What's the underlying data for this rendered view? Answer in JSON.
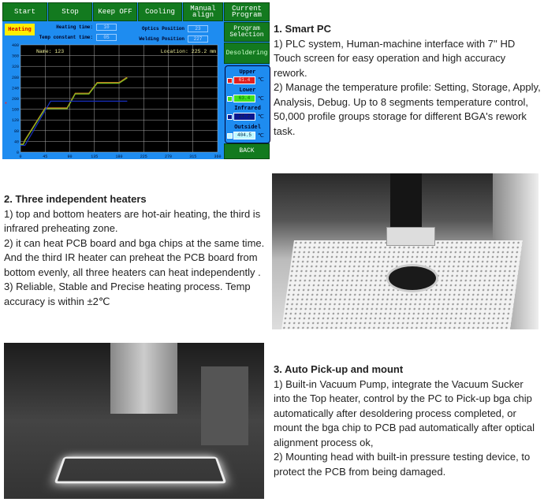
{
  "hmi": {
    "top_buttons": [
      "Start",
      "Stop",
      "Keep OFF",
      "Cooling",
      "Manual align",
      "Current Program"
    ],
    "side_buttons": [
      "Program Selection",
      "Desoldering",
      "BACK"
    ],
    "heating_badge": "Heating",
    "heating_time_label": "Heating time:",
    "heating_time_value": "10",
    "temp_constant_label": "Temp constant time:",
    "temp_constant_value": "0S",
    "optics_label": "Optics Position",
    "optics_value": "23",
    "welding_label": "Welding Position",
    "welding_value": "227",
    "name_label": "Name: 123",
    "location_label": "Location: 225.2 mm",
    "temps": [
      {
        "label": "Upper",
        "value": "61.4",
        "color": "#e02020"
      },
      {
        "label": "Lower",
        "value": "63.4",
        "color": "#40e020"
      },
      {
        "label": "Infrared",
        "value": "24.2",
        "color": "#0a1890"
      },
      {
        "label": "Outsidel",
        "value": "404.5",
        "color": "#bff8ff"
      }
    ],
    "unit": "℃",
    "chart_data": {
      "type": "line",
      "x_ticks": [
        "0",
        "45",
        "90",
        "135",
        "180",
        "225",
        "270",
        "315",
        "360"
      ],
      "y_ticks": [
        "0",
        "40",
        "80",
        "120",
        "160",
        "200",
        "240",
        "280",
        "320",
        "360",
        "400"
      ],
      "xlim": [
        0,
        360
      ],
      "ylim": [
        0,
        400
      ],
      "grid": true,
      "series": [
        {
          "color": "#c07020",
          "points": [
            [
              0,
              30
            ],
            [
              5,
              30
            ],
            [
              8,
              45
            ],
            [
              45,
              165
            ],
            [
              85,
              165
            ],
            [
              100,
              220
            ],
            [
              125,
              220
            ],
            [
              140,
              260
            ],
            [
              180,
              260
            ],
            [
              195,
              280
            ]
          ]
        },
        {
          "color": "#80c020",
          "points": [
            [
              0,
              28
            ],
            [
              5,
              28
            ],
            [
              8,
              42
            ],
            [
              45,
              162
            ],
            [
              85,
              162
            ],
            [
              100,
              217
            ],
            [
              125,
              217
            ],
            [
              140,
              257
            ],
            [
              180,
              257
            ],
            [
              195,
              277
            ]
          ]
        },
        {
          "color": "#1830c0",
          "points": [
            [
              0,
              25
            ],
            [
              8,
              25
            ],
            [
              55,
              190
            ],
            [
              195,
              190
            ]
          ]
        }
      ]
    }
  },
  "section1": {
    "title": "1. Smart PC",
    "p1": "1) PLC system, Human-machine interface with 7'' HD Touch screen for easy operation and high accuracy rework.",
    "p2": "2) Manage the temperature profile: Setting, Storage, Apply, Analysis, Debug. Up to 8 segments temperature control, 50,000 profile groups storage for different BGA's rework task."
  },
  "section2": {
    "title": "2. Three independent heaters",
    "p1": "1)  top and bottom heaters are hot-air heating, the third is infrared preheating zone.",
    "p2": "2) it can heat PCB board and bga chips at the same time. And the third IR heater can preheat the PCB board from bottom evenly, all three heaters can heat independently .",
    "p3": "3) Reliable, Stable and Precise heating process. Temp accuracy is within ±2℃"
  },
  "section3": {
    "title": "3. Auto Pick-up and mount",
    "p1": "1) Built-in Vacuum Pump, integrate the Vacuum Sucker into the Top heater, control by the PC to Pick-up bga chip automatically after desoldering process completed, or mount the bga chip to PCB pad automatically after optical alignment process ok,",
    "p2": "2) Mounting head with built-in pressure testing device, to protect the PCB from being damaged."
  }
}
